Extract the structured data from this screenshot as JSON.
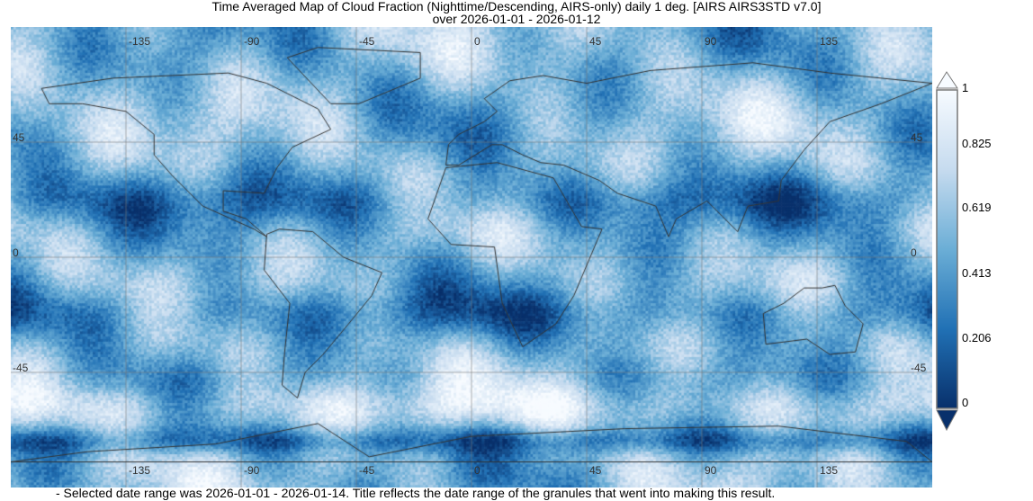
{
  "title": {
    "line1": "Time Averaged Map of Cloud Fraction (Nighttime/Descending, AIRS-only) daily 1 deg. [AIRS AIRS3STD v7.0]",
    "line2": "over 2026-01-01 - 2026-01-12"
  },
  "map": {
    "lon_labels": [
      "-135",
      "-90",
      "-45",
      "0",
      "45",
      "90",
      "135"
    ],
    "lat_labels": [
      "45",
      "0",
      "-45"
    ],
    "lon_ticks": [
      -135,
      -90,
      -45,
      0,
      45,
      90,
      135
    ],
    "lat_ticks": [
      45,
      0,
      -45
    ],
    "colormap": [
      "#08306b",
      "#2171b5",
      "#6baed6",
      "#c6dbef",
      "#f7fbff"
    ]
  },
  "colorbar": {
    "min": 0,
    "max": 1,
    "ticks": [
      "1",
      "0.825",
      "0.619",
      "0.413",
      "0.206",
      "0"
    ]
  },
  "footnote": "- Selected date range was 2026-01-01 - 2026-01-14. Title reflects the date range of the granules that went into making this result."
}
